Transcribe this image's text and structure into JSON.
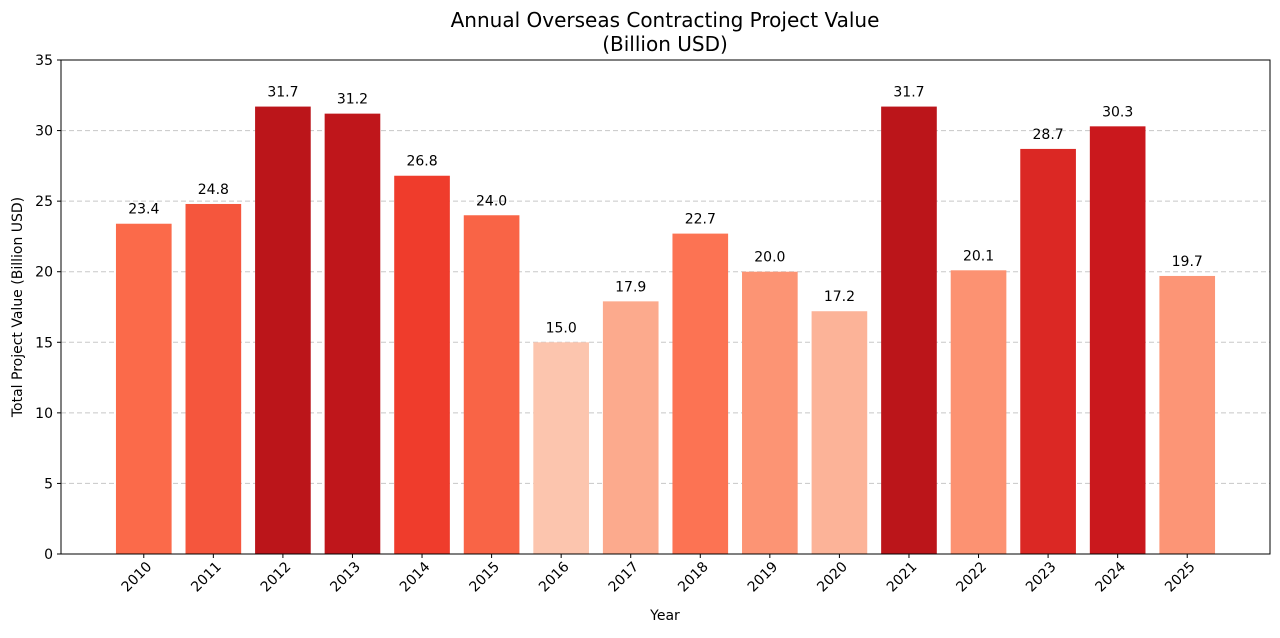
{
  "chart_data": {
    "type": "bar",
    "title": "Annual Overseas Contracting Project Value",
    "subtitle": "(Billion USD)",
    "xlabel": "Year",
    "ylabel": "Total Project Value (Billion USD)",
    "ylim": [
      0,
      35
    ],
    "yticks": [
      0,
      5,
      10,
      15,
      20,
      25,
      30,
      35
    ],
    "grid": "y-dashed",
    "categories": [
      "2010",
      "2011",
      "2012",
      "2013",
      "2014",
      "2015",
      "2016",
      "2017",
      "2018",
      "2019",
      "2020",
      "2021",
      "2022",
      "2023",
      "2024",
      "2025"
    ],
    "values": [
      23.4,
      24.8,
      31.7,
      31.2,
      26.8,
      24.0,
      15.0,
      17.9,
      22.7,
      20.0,
      17.2,
      31.7,
      20.1,
      28.7,
      30.3,
      19.7
    ],
    "value_labels": [
      "23.4",
      "24.8",
      "31.7",
      "31.2",
      "26.8",
      "24.0",
      "15.0",
      "17.9",
      "22.7",
      "20.0",
      "17.2",
      "31.7",
      "20.1",
      "28.7",
      "30.3",
      "19.7"
    ],
    "colors": [
      "#fb6a4a",
      "#f5563d",
      "#bb151a",
      "#bf161b",
      "#ef3c2c",
      "#f96446",
      "#fcc5ae",
      "#fcaa8d",
      "#fc7353",
      "#fc9474",
      "#fcb398",
      "#bb151a",
      "#fc9272",
      "#db2824",
      "#ca181d",
      "#fc9576"
    ]
  }
}
